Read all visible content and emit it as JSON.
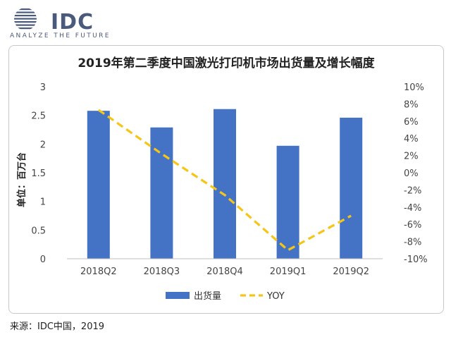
{
  "brand": {
    "name": "IDC",
    "tagline": "ANALYZE THE FUTURE"
  },
  "source_note": "来源：IDC中国，2019",
  "colors": {
    "bar": "#4472c4",
    "line": "#f5c518",
    "brand": "#4a5a7c"
  },
  "chart_data": {
    "type": "bar",
    "title": "2019年第二季度中国激光打印机市场出货量及增长幅度",
    "categories": [
      "2018Q2",
      "2018Q3",
      "2018Q4",
      "2019Q1",
      "2019Q2"
    ],
    "series": [
      {
        "name": "出货量",
        "type": "bar",
        "axis": "left",
        "values": [
          2.58,
          2.29,
          2.61,
          1.97,
          2.46
        ]
      },
      {
        "name": "YOY",
        "type": "line",
        "style": "dashed",
        "axis": "right",
        "values": [
          7.3,
          2.2,
          -2.6,
          -9.0,
          -5.0
        ]
      }
    ],
    "ylabel": "单位：百万台",
    "ylim": [
      0,
      3
    ],
    "yticks": [
      "0",
      "0.5",
      "1",
      "1.5",
      "2",
      "2.5",
      "3"
    ],
    "y2lim": [
      -10,
      10
    ],
    "y2ticks": [
      "-10%",
      "-8%",
      "-6%",
      "-4%",
      "-2%",
      "0%",
      "2%",
      "4%",
      "6%",
      "8%",
      "10%"
    ],
    "legend_position": "bottom",
    "grid": false
  }
}
